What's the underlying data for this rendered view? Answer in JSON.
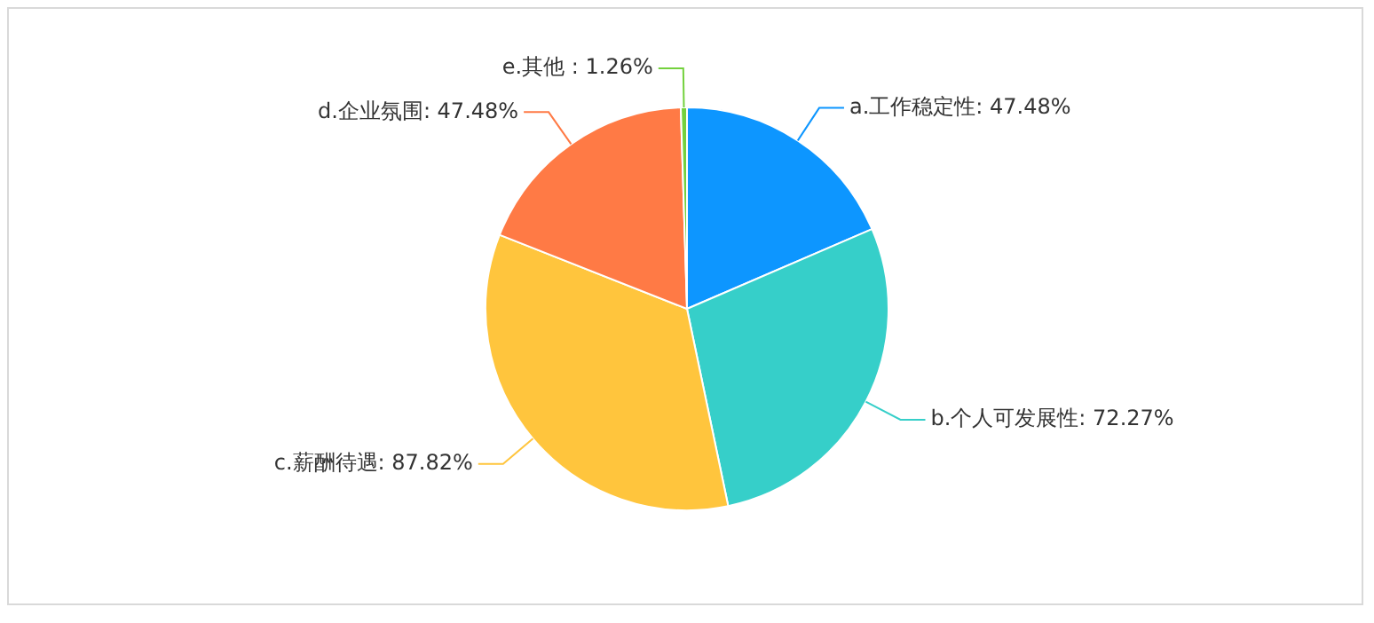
{
  "chart_data": {
    "type": "pie",
    "categories": [
      "a.工作稳定性",
      "b.个人可发展性",
      "c.薪酬待遇",
      "d.企业氛围",
      "e.其他 "
    ],
    "values": [
      47.48,
      72.27,
      87.82,
      47.48,
      1.26
    ],
    "value_labels": [
      "47.48%",
      "72.27%",
      "87.82%",
      "47.48%",
      "1.26%"
    ],
    "colors": [
      "#0d96ff",
      "#36cfc9",
      "#ffc53d",
      "#ff7a45",
      "#73d13d"
    ],
    "legend": false
  }
}
